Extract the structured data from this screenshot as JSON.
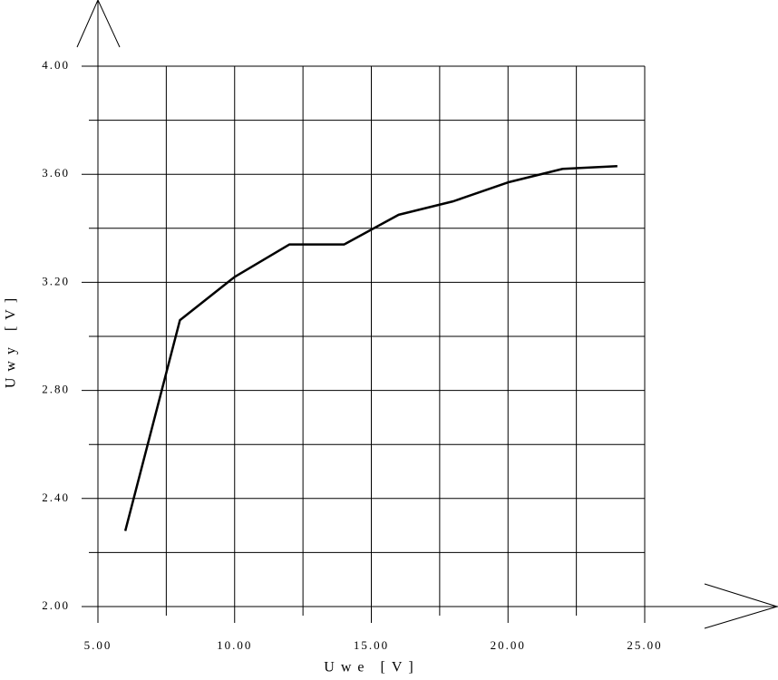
{
  "chart_data": {
    "type": "line",
    "xlabel": "Uwe [V]",
    "ylabel": "Uwy [V]",
    "x": [
      6,
      8,
      10,
      12,
      14,
      16,
      18,
      20,
      22,
      24
    ],
    "series": [
      {
        "color": "#000000",
        "values": [
          2.28,
          3.06,
          3.22,
          3.34,
          3.34,
          3.45,
          3.5,
          3.57,
          3.62,
          3.63
        ]
      }
    ],
    "xlim": [
      5,
      25
    ],
    "xticks": [
      {
        "value": 5,
        "label": "5.00"
      },
      {
        "value": 10,
        "label": "10.00"
      },
      {
        "value": 15,
        "label": "15.00"
      },
      {
        "value": 20,
        "label": "20.00"
      },
      {
        "value": 25,
        "label": "25.00"
      }
    ],
    "xminor": [
      7.5,
      12.5,
      17.5,
      22.5
    ],
    "ylim": [
      2,
      4
    ],
    "yticks": [
      {
        "value": 2,
        "label": "2.00"
      },
      {
        "value": 2.4,
        "label": "2.40"
      },
      {
        "value": 2.8,
        "label": "2.80"
      },
      {
        "value": 3.2,
        "label": "3.20"
      },
      {
        "value": 3.6,
        "label": "3.60"
      },
      {
        "value": 4,
        "label": "4.00"
      }
    ],
    "yminor": [
      2.2,
      2.6,
      3.0,
      3.4,
      3.8
    ],
    "grid": true
  }
}
